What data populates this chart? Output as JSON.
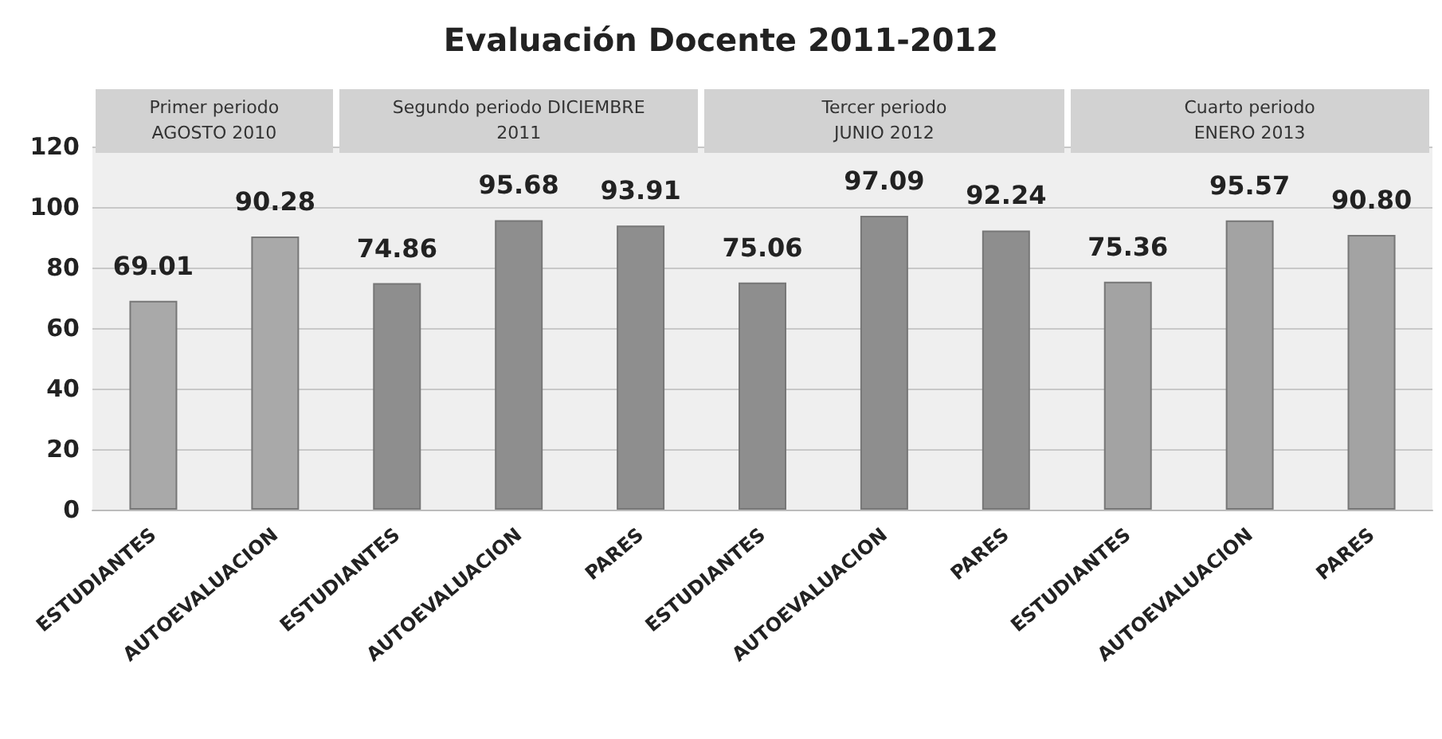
{
  "chart_data": {
    "type": "bar",
    "title": "Evaluación Docente 2011-2012",
    "categories": [
      "ESTUDIANTES",
      "AUTOEVALUACION",
      "ESTUDIANTES",
      "AUTOEVALUACION",
      "PARES",
      "ESTUDIANTES",
      "AUTOEVALUACION",
      "PARES",
      "ESTUDIANTES",
      "AUTOEVALUACION",
      "PARES"
    ],
    "values": [
      69.01,
      90.28,
      74.86,
      95.68,
      93.91,
      75.06,
      97.09,
      92.24,
      75.36,
      95.57,
      90.8
    ],
    "value_labels": [
      "69.01",
      "90.28",
      "74.86",
      "95.68",
      "93.91",
      "75.06",
      "97.09",
      "92.24",
      "75.36",
      "95.57",
      "90.80"
    ],
    "colors": [
      "#a9a9a9",
      "#a9a9a9",
      "#8e8e8e",
      "#8e8e8e",
      "#8e8e8e",
      "#8e8e8e",
      "#8e8e8e",
      "#8e8e8e",
      "#a3a3a3",
      "#a3a3a3",
      "#a3a3a3"
    ],
    "annotations": [
      "Primer periodo\nAGOSTO 2010",
      "Segundo periodo DICIEMBRE\n2011",
      "Tercer periodo\nJUNIO 2012",
      "Cuarto periodo\nENERO 2013"
    ],
    "ylim": [
      0,
      120
    ],
    "yticks": [
      0,
      20,
      40,
      60,
      80,
      100,
      120
    ],
    "grid": "y"
  }
}
